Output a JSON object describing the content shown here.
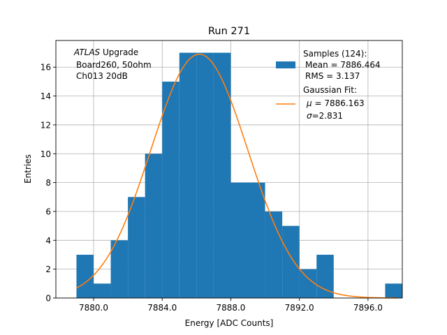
{
  "chart_data": {
    "type": "bar",
    "title": "Run 271",
    "xlabel": "Energy [ADC Counts]",
    "ylabel": "Entries",
    "xlim": [
      7877.8,
      7898.0
    ],
    "ylim": [
      0,
      17.85
    ],
    "xticks": [
      7880.0,
      7884.0,
      7888.0,
      7892.0,
      7896.0
    ],
    "xtick_labels": [
      "7880.0",
      "7884.0",
      "7888.0",
      "7892.0",
      "7896.0"
    ],
    "yticks": [
      0,
      2,
      4,
      6,
      8,
      10,
      12,
      14,
      16
    ],
    "ytick_labels": [
      "0",
      "2",
      "4",
      "6",
      "8",
      "10",
      "12",
      "14",
      "16"
    ],
    "grid": true,
    "bin_width": 1.0,
    "bins": [
      {
        "x_left": 7879.0,
        "count": 3
      },
      {
        "x_left": 7880.0,
        "count": 1
      },
      {
        "x_left": 7881.0,
        "count": 4
      },
      {
        "x_left": 7882.0,
        "count": 7
      },
      {
        "x_left": 7883.0,
        "count": 10
      },
      {
        "x_left": 7884.0,
        "count": 15
      },
      {
        "x_left": 7885.0,
        "count": 17
      },
      {
        "x_left": 7886.0,
        "count": 17
      },
      {
        "x_left": 7887.0,
        "count": 17
      },
      {
        "x_left": 7888.0,
        "count": 8
      },
      {
        "x_left": 7889.0,
        "count": 8
      },
      {
        "x_left": 7890.0,
        "count": 6
      },
      {
        "x_left": 7891.0,
        "count": 5
      },
      {
        "x_left": 7892.0,
        "count": 2
      },
      {
        "x_left": 7893.0,
        "count": 3
      },
      {
        "x_left": 7894.0,
        "count": 0
      },
      {
        "x_left": 7895.0,
        "count": 0
      },
      {
        "x_left": 7896.0,
        "count": 0
      },
      {
        "x_left": 7897.0,
        "count": 1
      }
    ],
    "fit": {
      "mu": 7886.163,
      "sigma": 2.831,
      "amplitude": 16.9,
      "x_range": [
        7879.0,
        7897.7
      ]
    },
    "legend_position": "upper right",
    "colors": {
      "histogram": "#1f77b4",
      "fit": "#ff7f0e",
      "grid": "#b0b0b0"
    }
  },
  "annotation": {
    "line1_italic": "ATLAS",
    "line1_rest": " Upgrade",
    "line2": "Board260, 50ohm",
    "line3": "Ch013 20dB"
  },
  "legend": {
    "samples_title": "Samples (124):",
    "samples_mean": "Mean = 7886.464",
    "samples_rms": "RMS = 3.137",
    "fit_title": "Gaussian Fit:",
    "fit_mu_symbol": "μ",
    "fit_mu_value": " = 7886.163",
    "fit_sigma_symbol": "σ",
    "fit_sigma_value": "=2.831"
  }
}
